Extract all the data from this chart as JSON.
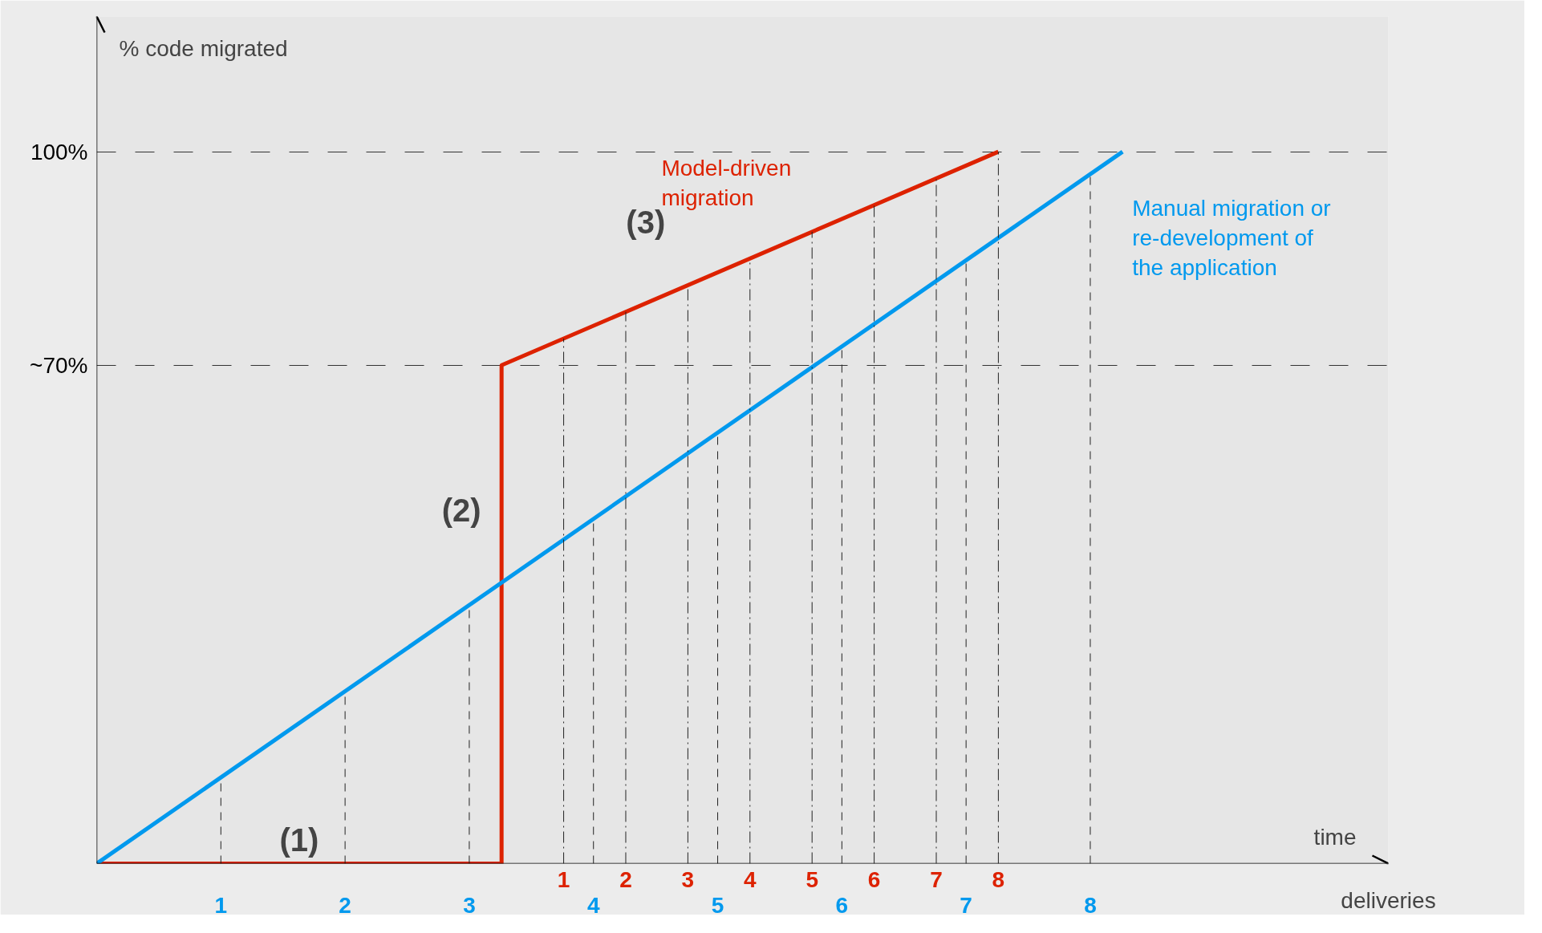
{
  "chart_data": {
    "type": "line",
    "xlabel": "deliveries",
    "ylabel": "% code migrated",
    "xlim": [
      0,
      10.4
    ],
    "ylim": [
      0,
      119
    ],
    "x2lim": [
      -6.52,
      14.28
    ],
    "xticks": [
      1,
      2,
      3,
      4,
      5,
      6,
      7,
      8
    ],
    "x2ticks": [
      1,
      2,
      3,
      4,
      5,
      6,
      7,
      8
    ],
    "yticks": [
      {
        "value": 100,
        "label": "100%"
      },
      {
        "value": 70,
        "label": "~70%"
      }
    ],
    "grid": "y",
    "series": [
      {
        "name": "Model-driven\nmigration",
        "color": "#dd2200",
        "axis": "x2",
        "x": [
          -6.52,
          0,
          0,
          8
        ],
        "values": [
          0,
          0,
          70,
          100
        ]
      },
      {
        "name": "Manual migration or\nre-development of\nthe application",
        "color": "#0099ee",
        "x": [
          0,
          8.26
        ],
        "values": [
          0,
          100
        ]
      }
    ],
    "ref_lines": [
      {
        "axis": "x",
        "value": 1,
        "line_style": "dashed"
      },
      {
        "axis": "x",
        "value": 2,
        "line_style": "dashed"
      },
      {
        "axis": "x",
        "value": 3,
        "line_style": "dashed"
      },
      {
        "axis": "x",
        "value": 4,
        "line_style": "dashed"
      },
      {
        "axis": "x",
        "value": 5,
        "line_style": "dashed"
      },
      {
        "axis": "x",
        "value": 6,
        "line_style": "dashed"
      },
      {
        "axis": "x",
        "value": 7,
        "line_style": "dashed"
      },
      {
        "axis": "x",
        "value": 8,
        "line_style": "dashed"
      },
      {
        "axis": "x2",
        "value": 1,
        "line_style": "dotted"
      },
      {
        "axis": "x2",
        "value": 2,
        "line_style": "dotted"
      },
      {
        "axis": "x2",
        "value": 3,
        "line_style": "dotted"
      },
      {
        "axis": "x2",
        "value": 4,
        "line_style": "dotted"
      },
      {
        "axis": "x2",
        "value": 5,
        "line_style": "dotted"
      },
      {
        "axis": "x2",
        "value": 6,
        "line_style": "dotted"
      },
      {
        "axis": "x2",
        "value": 7,
        "line_style": "dotted"
      },
      {
        "axis": "x2",
        "value": 8,
        "line_style": "dotted"
      }
    ],
    "annotations": [
      "(1)",
      "(2)",
      "(3)",
      "time"
    ]
  }
}
